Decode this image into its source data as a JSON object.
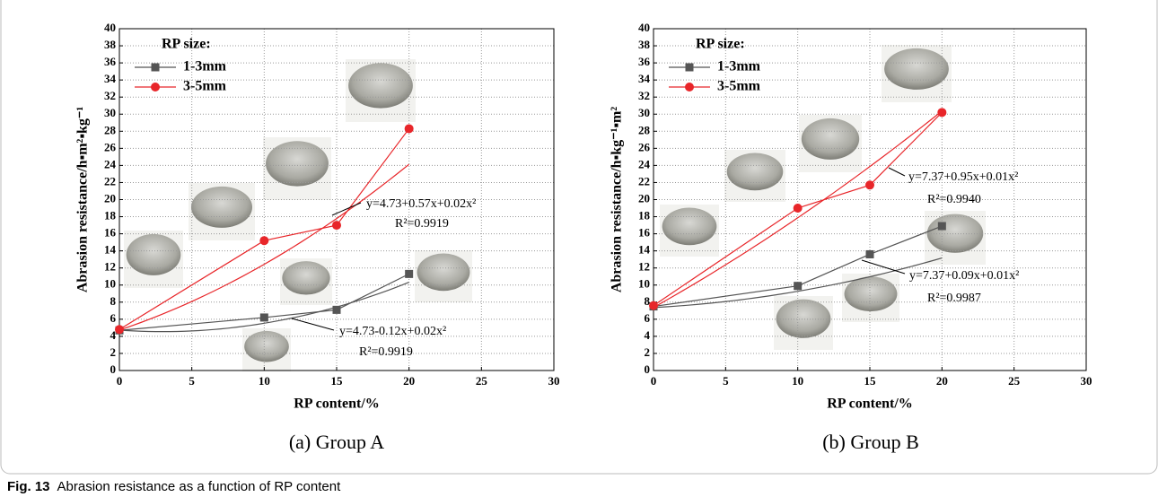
{
  "chart_data": [
    {
      "type": "line",
      "caption": "(a) Group A",
      "xlabel": "RP content/%",
      "ylabel": "Abrasion resistance/h▪m²▪kg⁻¹",
      "legend_title": "RP size:",
      "x": [
        0,
        10,
        15,
        20
      ],
      "xlim": [
        0,
        30
      ],
      "ylim": [
        0,
        40
      ],
      "xticks": [
        0,
        5,
        10,
        15,
        20,
        25,
        30
      ],
      "yticks": [
        0,
        2,
        4,
        6,
        8,
        10,
        12,
        14,
        16,
        18,
        20,
        22,
        24,
        26,
        28,
        30,
        32,
        34,
        36,
        38,
        40
      ],
      "grid": true,
      "series": [
        {
          "name": "1-3mm",
          "color": "#555555",
          "marker": "square",
          "values": [
            4.7,
            6.2,
            7.1,
            11.3
          ],
          "fit": {
            "coefficients": [
              4.73,
              -0.12,
              0.02
            ],
            "label": "y=4.73-0.12x+0.02x²",
            "r2_label": "R²=0.9919"
          }
        },
        {
          "name": "3-5mm",
          "color": "#e8262a",
          "marker": "circle",
          "values": [
            4.8,
            15.2,
            17.0,
            28.3
          ],
          "fit": {
            "coefficients": [
              4.73,
              0.57,
              0.02
            ],
            "label": "y=4.73+0.57x+0.02x²",
            "r2_label": "R²=0.9919"
          }
        }
      ]
    },
    {
      "type": "line",
      "caption": "(b) Group B",
      "xlabel": "RP content/%",
      "ylabel": "Abrasion resistance/h▪kg⁻¹▪m²",
      "legend_title": "RP size:",
      "x": [
        0,
        10,
        15,
        20
      ],
      "xlim": [
        0,
        30
      ],
      "ylim": [
        0,
        40
      ],
      "xticks": [
        0,
        5,
        10,
        15,
        20,
        25,
        30
      ],
      "yticks": [
        0,
        2,
        4,
        6,
        8,
        10,
        12,
        14,
        16,
        18,
        20,
        22,
        24,
        26,
        28,
        30,
        32,
        34,
        36,
        38,
        40
      ],
      "grid": true,
      "series": [
        {
          "name": "1-3mm",
          "color": "#555555",
          "marker": "square",
          "values": [
            7.5,
            9.9,
            13.6,
            16.9
          ],
          "fit": {
            "coefficients": [
              7.37,
              0.09,
              0.01
            ],
            "label": "y=7.37+0.09x+0.01x²",
            "r2_label": "R²=0.9987"
          }
        },
        {
          "name": "3-5mm",
          "color": "#e8262a",
          "marker": "circle",
          "values": [
            7.6,
            19.0,
            21.7,
            30.2
          ],
          "fit": {
            "coefficients": [
              7.37,
              0.95,
              0.01
            ],
            "label": "y=7.37+0.95x+0.01x²",
            "r2_label": "R²=0.9940"
          }
        }
      ]
    }
  ],
  "figure": {
    "label": "Fig. 13",
    "caption": "Abrasion resistance as a function of RP content"
  }
}
